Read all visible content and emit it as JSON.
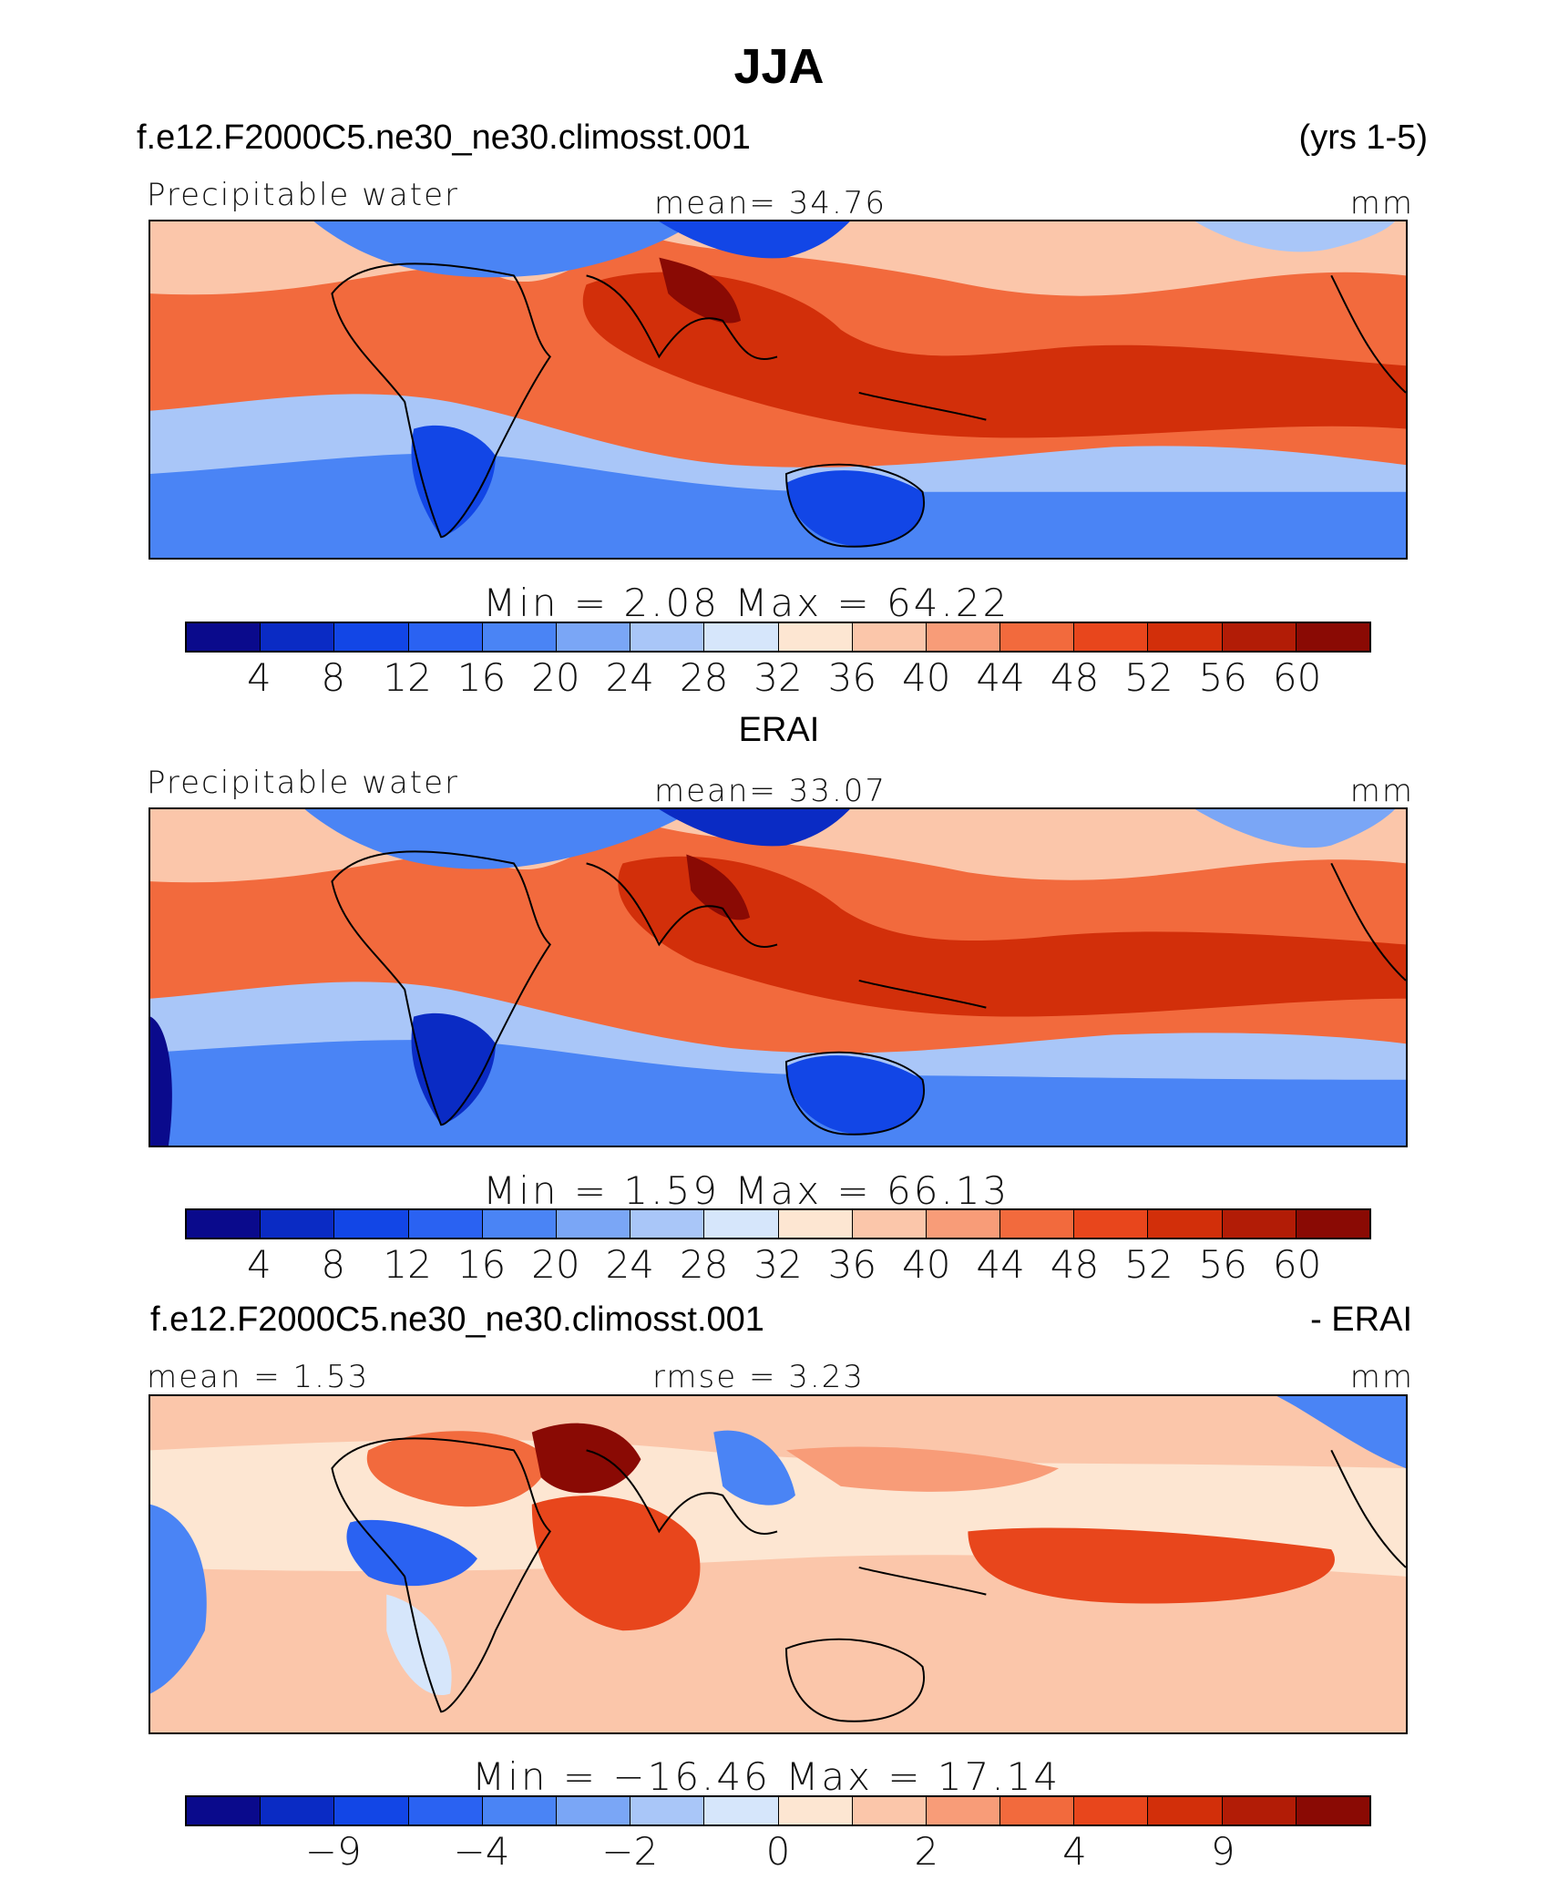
{
  "page_title": "JJA",
  "years": "(yrs 1-5)",
  "panels": [
    {
      "case_label": "f.e12.F2000C5.ne30_ne30.climosst.001",
      "left_label": "Precipitable water",
      "center_label": "mean=   34.76",
      "units": "mm",
      "stats": "Min  =     2.08  Max  =    64.22"
    },
    {
      "case_label": "ERAI",
      "left_label": "Precipitable water",
      "center_label": "mean=   33.07",
      "units": "mm",
      "stats": "Min  =     1.59  Max  =    66.13"
    },
    {
      "case_label": "f.e12.F2000C5.ne30_ne30.climosst.001",
      "case_label_right": "- ERAI",
      "left_label": "mean  =     1.53",
      "center_label": "rmse  =     3.23",
      "units": "mm",
      "stats": "Min  = −16.46  Max  =    17.14"
    }
  ],
  "colors": {
    "abs_palette": [
      "#0a0a8c",
      "#0a2bc4",
      "#1246e6",
      "#2a62f2",
      "#4a84f5",
      "#7aa6f6",
      "#a9c6f8",
      "#d6e6fb",
      "#fde6d2",
      "#fbc6aa",
      "#f89c78",
      "#f26a3d",
      "#e8461c",
      "#d22f0a",
      "#b21c06",
      "#8a0a04"
    ],
    "diff_palette": [
      "#0a0a8c",
      "#0a2bc4",
      "#1246e6",
      "#2a62f2",
      "#4a84f5",
      "#7aa6f6",
      "#a9c6f8",
      "#d6e6fb",
      "#fde6d2",
      "#fbc6aa",
      "#f89c78",
      "#f26a3d",
      "#e8461c",
      "#d22f0a",
      "#b21c06",
      "#8a0a04"
    ],
    "coast": "#000000"
  },
  "chart_data": [
    {
      "type": "heatmap",
      "title": "Precipitable water",
      "variable": "Precipitable water",
      "units": "mm",
      "mean": 34.76,
      "min": 2.08,
      "max": 64.22,
      "colorbar_levels": [
        4,
        8,
        12,
        16,
        20,
        24,
        28,
        32,
        36,
        40,
        44,
        48,
        52,
        56,
        60
      ],
      "colorbar_tick_labels": [
        "4",
        "8",
        "12",
        "16",
        "20",
        "24",
        "28",
        "32",
        "36",
        "40",
        "44",
        "48",
        "52",
        "56",
        "60"
      ]
    },
    {
      "type": "heatmap",
      "title": "ERAI",
      "variable": "Precipitable water",
      "units": "mm",
      "mean": 33.07,
      "min": 1.59,
      "max": 66.13,
      "colorbar_levels": [
        4,
        8,
        12,
        16,
        20,
        24,
        28,
        32,
        36,
        40,
        44,
        48,
        52,
        56,
        60
      ],
      "colorbar_tick_labels": [
        "4",
        "8",
        "12",
        "16",
        "20",
        "24",
        "28",
        "32",
        "36",
        "40",
        "44",
        "48",
        "52",
        "56",
        "60"
      ]
    },
    {
      "type": "heatmap",
      "title": "f.e12.F2000C5.ne30_ne30.climosst.001 - ERAI",
      "units": "mm",
      "mean": 1.53,
      "rmse": 3.23,
      "min": -16.46,
      "max": 17.14,
      "colorbar_tick_labels": [
        "−9",
        "−4",
        "−2",
        "0",
        "2",
        "4",
        "9"
      ]
    }
  ]
}
